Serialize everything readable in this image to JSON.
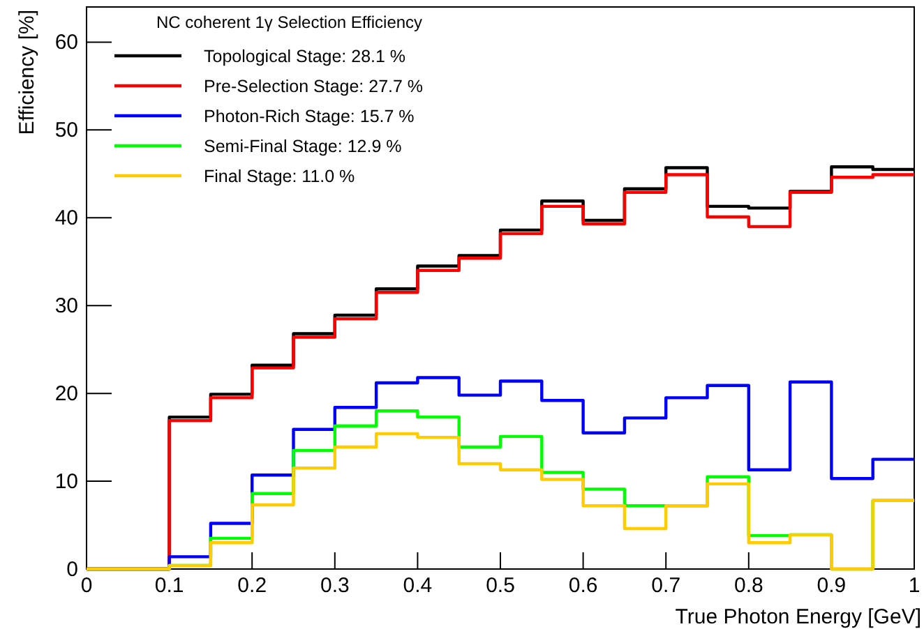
{
  "chart_data": {
    "type": "histogram",
    "xlabel": "True Photon Energy [GeV]",
    "ylabel": "Efficiency [%]",
    "legend_title": "NC coherent 1γ Selection Efficiency",
    "legend": "top left",
    "grid": false,
    "bins": [
      0,
      0.05,
      0.1,
      0.15,
      0.2,
      0.25,
      0.3,
      0.35,
      0.4,
      0.45,
      0.5,
      0.55,
      0.6,
      0.65,
      0.7,
      0.75,
      0.8,
      0.85,
      0.9,
      0.95,
      1
    ],
    "xlim": [
      0,
      1
    ],
    "xticks": [
      0,
      0.1,
      0.2,
      0.3,
      0.4,
      0.5,
      0.6,
      0.7,
      0.8,
      0.9,
      1
    ],
    "ylim": [
      0,
      64
    ],
    "yticks": [
      0,
      10,
      20,
      30,
      40,
      50,
      60
    ],
    "series": [
      {
        "name": "Topological Stage: 28.1 %",
        "color": "#000000",
        "values": [
          0,
          0,
          17.3,
          19.9,
          23.2,
          26.8,
          28.9,
          31.9,
          34.5,
          35.7,
          38.6,
          41.9,
          39.7,
          43.3,
          45.7,
          41.3,
          41.1,
          43.0,
          45.8,
          45.5
        ]
      },
      {
        "name": "Pre-Selection Stage: 27.7 %",
        "color": "#ff0000",
        "values": [
          0,
          0,
          16.9,
          19.5,
          22.9,
          26.4,
          28.5,
          31.5,
          34.0,
          35.4,
          38.2,
          41.3,
          39.3,
          42.9,
          44.9,
          40.1,
          39.0,
          42.9,
          44.6,
          44.9
        ]
      },
      {
        "name": "Photon-Rich Stage: 15.7 %",
        "color": "#0000ff",
        "values": [
          0,
          0,
          1.4,
          5.2,
          10.7,
          15.9,
          18.4,
          21.2,
          21.8,
          19.8,
          21.4,
          19.2,
          15.5,
          17.2,
          19.5,
          20.9,
          11.3,
          21.3,
          10.3,
          12.5
        ]
      },
      {
        "name": "Semi-Final Stage: 12.9 %",
        "color": "#00ff00",
        "values": [
          0,
          0,
          0.4,
          3.5,
          8.6,
          13.5,
          16.3,
          18.0,
          17.3,
          13.9,
          15.1,
          11.0,
          9.1,
          7.2,
          7.2,
          10.5,
          3.8,
          3.9,
          0,
          7.8
        ]
      },
      {
        "name": "Final Stage: 11.0 %",
        "color": "#ffcc00",
        "values": [
          0,
          0,
          0.4,
          3.0,
          7.3,
          11.5,
          13.9,
          15.4,
          15.0,
          12.0,
          11.3,
          10.2,
          7.2,
          4.6,
          7.2,
          9.7,
          3.0,
          3.9,
          0,
          7.8
        ]
      }
    ]
  }
}
